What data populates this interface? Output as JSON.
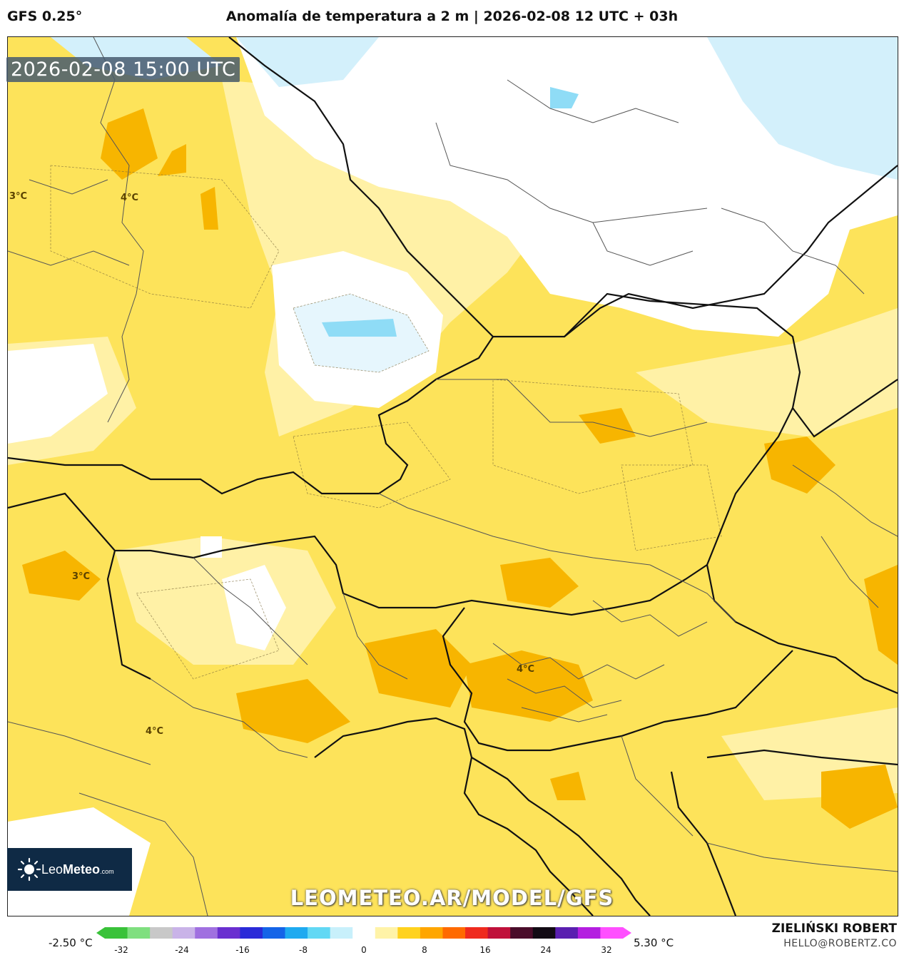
{
  "header": {
    "model": "GFS 0.25°",
    "title": "Anomalía de temperatura a 2 m | 2026-02-08 12 UTC + 03h"
  },
  "map": {
    "timestamp": "2026-02-08 15:00 UTC",
    "contour_labels": [
      "3°C",
      "4°C",
      "3°C",
      "4°C",
      "4°C"
    ],
    "watermark": "LEOMETEO.AR/MODEL/GFS",
    "logo_text_light": "Leo",
    "logo_text_bold": "Meteo",
    "logo_suffix": ".com"
  },
  "colorbar": {
    "min_label": "-2.50 °C",
    "max_label": "5.30 °C",
    "ticks": [
      "-32",
      "-24",
      "-16",
      "-8",
      "0",
      "8",
      "16",
      "24",
      "32"
    ],
    "colors": [
      "#39c239",
      "#7fdf7f",
      "#c8c8c8",
      "#c9b3e8",
      "#a070e0",
      "#6a2fd0",
      "#2a2ad8",
      "#1464e8",
      "#1eaaf0",
      "#62d8f4",
      "#c8f0fb",
      "#ffffff",
      "#fff3a8",
      "#ffd21e",
      "#ffa600",
      "#ff6a00",
      "#ef2a1e",
      "#c0103a",
      "#4a0c2a",
      "#120a14",
      "#5a1fb0",
      "#b41ee0",
      "#ff4fff"
    ]
  },
  "footer": {
    "author": "ZIELIŃSKI ROBERT",
    "email": "HELLO@ROBERTZ.CO"
  }
}
